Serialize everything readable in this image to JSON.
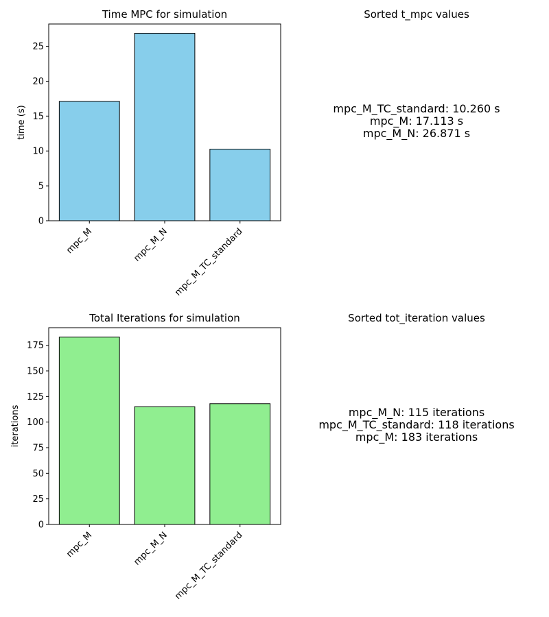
{
  "chart_data": [
    {
      "type": "bar",
      "title": "Time MPC for simulation",
      "xlabel": "",
      "ylabel": "time (s)",
      "categories": [
        "mpc_M",
        "mpc_M_N",
        "mpc_M_TC_standard"
      ],
      "values": [
        17.113,
        26.871,
        10.26
      ],
      "ylim": [
        0,
        28.2
      ],
      "yticks": [
        0,
        5,
        10,
        15,
        20,
        25
      ],
      "bar_color": "#87ceeb",
      "edge_color": "#000000",
      "grid": false
    },
    {
      "type": "bar",
      "title": "Total Iterations for simulation",
      "xlabel": "",
      "ylabel": "iterations",
      "categories": [
        "mpc_M",
        "mpc_M_N",
        "mpc_M_TC_standard"
      ],
      "values": [
        183,
        115,
        118
      ],
      "ylim": [
        0,
        192.2
      ],
      "yticks": [
        0,
        25,
        50,
        75,
        100,
        125,
        150,
        175
      ],
      "bar_color": "#90ee90",
      "edge_color": "#000000",
      "grid": false
    }
  ],
  "sorted_panels": [
    {
      "title": "Sorted t_mpc values",
      "lines": [
        "mpc_M_TC_standard: 10.260 s",
        "mpc_M: 17.113 s",
        "mpc_M_N: 26.871 s"
      ]
    },
    {
      "title": "Sorted tot_iteration values",
      "lines": [
        "mpc_M_N: 115 iterations",
        "mpc_M_TC_standard: 118 iterations",
        "mpc_M: 183 iterations"
      ]
    }
  ]
}
